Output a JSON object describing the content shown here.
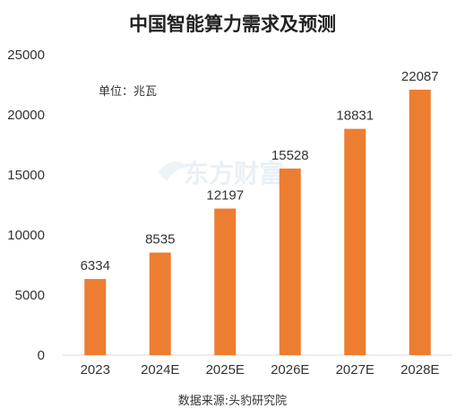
{
  "chart_data": {
    "type": "bar",
    "title": "中国智能算力需求及预测",
    "unit_note": "单位：兆瓦",
    "source": "数据来源:头豹研究院",
    "watermark": "东方财富",
    "categories": [
      "2023",
      "2024E",
      "2025E",
      "2026E",
      "2027E",
      "2028E"
    ],
    "values": [
      6334,
      8535,
      12197,
      15528,
      18831,
      22087
    ],
    "ylim": [
      0,
      25000
    ],
    "yticks": [
      0,
      5000,
      10000,
      15000,
      20000,
      25000
    ],
    "grid": false,
    "bar_color": "#ED7D31",
    "xlabel": "",
    "ylabel": ""
  }
}
